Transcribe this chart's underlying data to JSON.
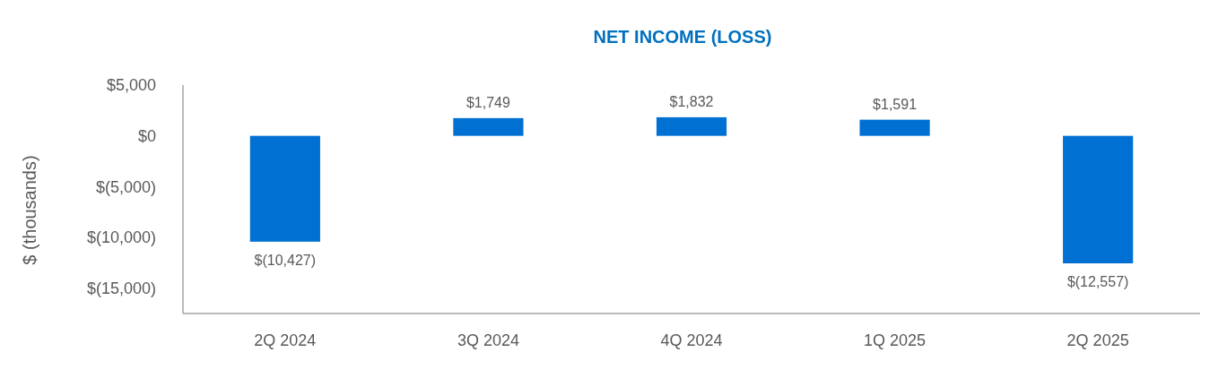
{
  "chart_data": {
    "type": "bar",
    "title": "NET INCOME (LOSS)",
    "ylabel": "$ (thousands)",
    "categories": [
      "2Q 2024",
      "3Q 2024",
      "4Q 2024",
      "1Q 2025",
      "2Q 2025"
    ],
    "values": [
      -10427,
      1749,
      1832,
      1591,
      -12557
    ],
    "value_labels": [
      "$(10,427)",
      "$1,749",
      "$1,832",
      "$1,591",
      "$(12,557)"
    ],
    "color": "#0070d2",
    "ylim": [
      -17500,
      5000
    ],
    "yticks": [
      {
        "value": 5000,
        "label": "$5,000"
      },
      {
        "value": 0,
        "label": "$0"
      },
      {
        "value": -5000,
        "label": "$(5,000)"
      },
      {
        "value": -10000,
        "label": "$(10,000)"
      },
      {
        "value": -15000,
        "label": "$(15,000)"
      }
    ],
    "grid": false
  }
}
